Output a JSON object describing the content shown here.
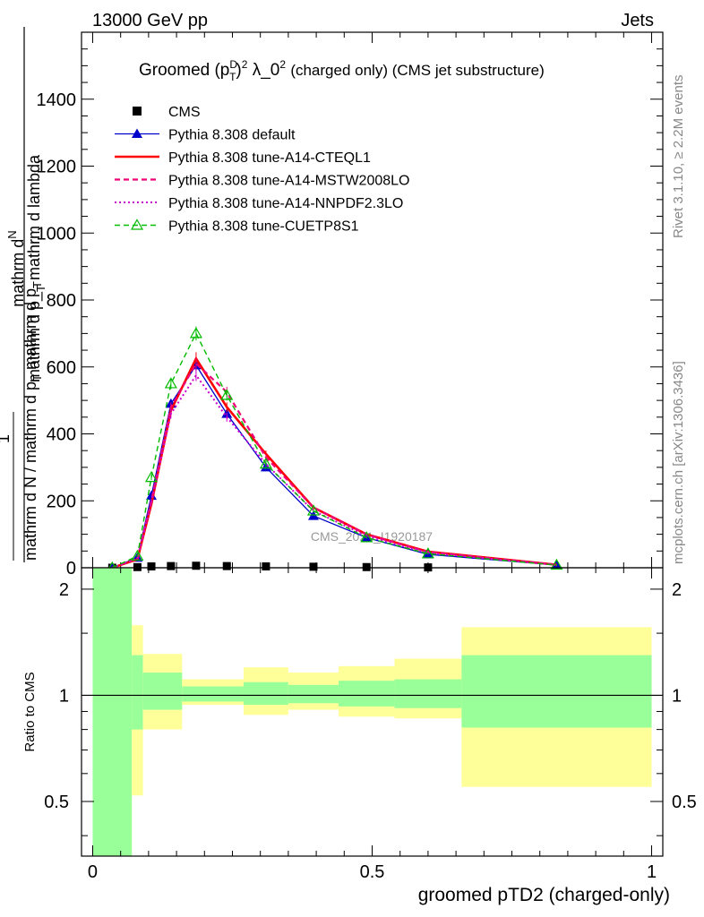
{
  "header": {
    "left": "13000 GeV pp",
    "right": "Jets"
  },
  "side_labels": {
    "rivet": "Rivet 3.1.10, ≥ 2.2M events",
    "mcplots": "mcplots.cern.ch [arXiv:1306.3436]"
  },
  "watermark": "CMS_2021_I1920187",
  "colors": {
    "cms": "#000000",
    "default": "#0000cc",
    "a14_cteql1": "#ff0000",
    "a14_mstw": "#ee0077",
    "a14_nnpdf": "#cc00cc",
    "cuetp8s1": "#00bb00",
    "band_inner": "#99ff99",
    "band_outer": "#ffff99"
  },
  "chart_data": [
    {
      "type": "line",
      "title": {
        "prefix": "Groomed",
        "math": "(p",
        "sub": "T",
        "sup_d": "D",
        "sq": "2",
        "lambda": "λ_0",
        "lambda_sq": "2",
        "suffix": "(charged only) (CMS jet substructure)"
      },
      "ylabel": {
        "line1": "mathrm d",
        "N": "N",
        "line2": "mathrm d p_",
        "T": "T",
        "line3": "mathrm d lambda",
        "one": "1",
        "den": "mathrm d N / mathrm d p",
        "den_T": "T",
        "den2": "mathrm d p",
        "den2_T": "T",
        "den3": "mathrm d lambda"
      },
      "ylim": [
        0,
        1600
      ],
      "yticks": [
        "0",
        "200",
        "400",
        "600",
        "800",
        "1000",
        "1200",
        "1400"
      ],
      "yticks_values": [
        0,
        200,
        400,
        600,
        800,
        1000,
        1200,
        1400
      ],
      "xlim": [
        -0.02,
        1.02
      ],
      "legend_position": "top-left",
      "series": [
        {
          "name": "CMS",
          "style": "cms",
          "x": [
            0.035,
            0.08,
            0.105,
            0.14,
            0.185,
            0.24,
            0.31,
            0.395,
            0.49,
            0.6
          ],
          "y": [
            0,
            2,
            4,
            5,
            6,
            5,
            4,
            3,
            2,
            1
          ]
        },
        {
          "name": "Pythia 8.308 default",
          "style": "default",
          "x": [
            0.035,
            0.08,
            0.105,
            0.14,
            0.185,
            0.24,
            0.31,
            0.395,
            0.49,
            0.6,
            0.83
          ],
          "y": [
            0,
            30,
            215,
            490,
            605,
            460,
            300,
            155,
            90,
            40,
            8
          ]
        },
        {
          "name": "Pythia 8.308 tune-A14-CTEQL1",
          "style": "a14_cteql1",
          "x": [
            0.035,
            0.08,
            0.105,
            0.14,
            0.185,
            0.24,
            0.31,
            0.395,
            0.49,
            0.6,
            0.83
          ],
          "y": [
            0,
            25,
            190,
            470,
            625,
            480,
            340,
            180,
            100,
            48,
            9
          ]
        },
        {
          "name": "Pythia 8.308 tune-A14-MSTW2008LO",
          "style": "a14_mstw",
          "x": [
            0.035,
            0.08,
            0.105,
            0.14,
            0.185,
            0.24,
            0.31,
            0.395,
            0.49,
            0.6,
            0.83
          ],
          "y": [
            0,
            28,
            200,
            480,
            610,
            525,
            330,
            180,
            100,
            47,
            9
          ]
        },
        {
          "name": "Pythia 8.308 tune-A14-NNPDF2.3LO",
          "style": "a14_nnpdf",
          "x": [
            0.035,
            0.08,
            0.105,
            0.14,
            0.185,
            0.24,
            0.31,
            0.395,
            0.49,
            0.6,
            0.83
          ],
          "y": [
            0,
            27,
            195,
            460,
            575,
            450,
            310,
            170,
            95,
            45,
            8
          ]
        },
        {
          "name": "Pythia 8.308 tune-CUETP8S1",
          "style": "cuetp8s1",
          "x": [
            0.035,
            0.08,
            0.105,
            0.14,
            0.185,
            0.24,
            0.31,
            0.395,
            0.49,
            0.6,
            0.83
          ],
          "y": [
            0,
            35,
            270,
            550,
            700,
            515,
            310,
            170,
            90,
            42,
            8
          ]
        }
      ]
    },
    {
      "type": "area",
      "ylabel": "Ratio to CMS",
      "xlabel": "groomed pTD2 (charged-only)",
      "ylim": [
        0.35,
        2.3
      ],
      "yticks": [
        "0.5",
        "1",
        "2"
      ],
      "yticks_values": [
        0.5,
        1,
        2
      ],
      "xlim": [
        -0.02,
        1.02
      ],
      "xticks": [
        "0",
        "0.5",
        "1"
      ],
      "xticks_values": [
        0,
        0.5,
        1
      ],
      "reference_line": 1,
      "bins": [
        {
          "x0": 0.0,
          "x1": 0.07,
          "inner": [
            0.35,
            2.3
          ],
          "outer": [
            0.35,
            2.3
          ]
        },
        {
          "x0": 0.07,
          "x1": 0.09,
          "inner": [
            0.8,
            1.3
          ],
          "outer": [
            0.52,
            1.58
          ]
        },
        {
          "x0": 0.09,
          "x1": 0.16,
          "inner": [
            0.91,
            1.16
          ],
          "outer": [
            0.8,
            1.31
          ]
        },
        {
          "x0": 0.16,
          "x1": 0.27,
          "inner": [
            0.96,
            1.06
          ],
          "outer": [
            0.94,
            1.11
          ]
        },
        {
          "x0": 0.27,
          "x1": 0.35,
          "inner": [
            0.94,
            1.09
          ],
          "outer": [
            0.88,
            1.2
          ]
        },
        {
          "x0": 0.35,
          "x1": 0.44,
          "inner": [
            0.95,
            1.07
          ],
          "outer": [
            0.91,
            1.16
          ]
        },
        {
          "x0": 0.44,
          "x1": 0.54,
          "inner": [
            0.93,
            1.1
          ],
          "outer": [
            0.87,
            1.21
          ]
        },
        {
          "x0": 0.54,
          "x1": 0.66,
          "inner": [
            0.92,
            1.11
          ],
          "outer": [
            0.86,
            1.27
          ]
        },
        {
          "x0": 0.66,
          "x1": 1.0,
          "inner": [
            0.81,
            1.3
          ],
          "outer": [
            0.55,
            1.56
          ]
        }
      ]
    }
  ]
}
